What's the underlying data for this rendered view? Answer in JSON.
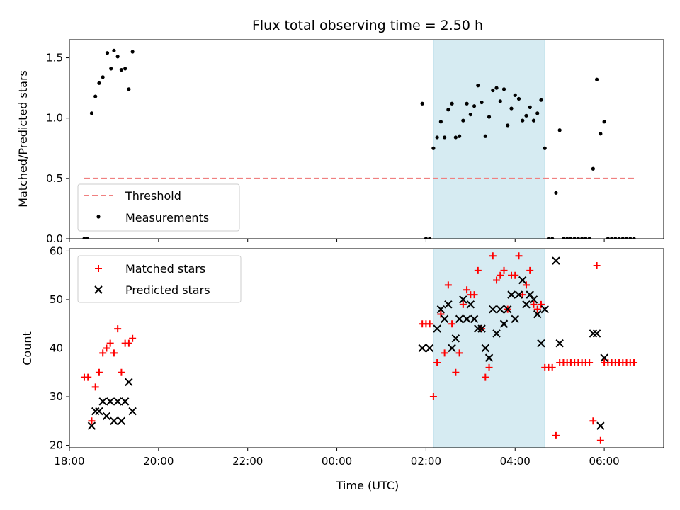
{
  "chart_data": [
    {
      "type": "scatter",
      "title": "Flux total observing time = 2.50 h",
      "xlabel": "",
      "ylabel": "Matched/Predicted stars",
      "ylim": [
        0,
        1.65
      ],
      "yticks": [
        "0.0",
        "0.5",
        "1.0",
        "1.5"
      ],
      "xlim": [
        "18:00",
        "07:20"
      ],
      "legend_position": "lower-left",
      "shaded_interval": {
        "start": "02:10",
        "end": "04:40",
        "color": "#add8e6"
      },
      "threshold": {
        "name": "Threshold",
        "value": 0.5,
        "x_start": "18:20",
        "x_end": "06:40",
        "color": "#f08080"
      },
      "series": [
        {
          "name": "Measurements",
          "color": "#000000",
          "marker": "dot",
          "points": [
            [
              "18:20",
              0.0
            ],
            [
              "18:24",
              0.0
            ],
            [
              "18:30",
              1.04
            ],
            [
              "18:35",
              1.18
            ],
            [
              "18:40",
              1.29
            ],
            [
              "18:45",
              1.34
            ],
            [
              "18:51",
              1.54
            ],
            [
              "18:56",
              1.41
            ],
            [
              "19:00",
              1.56
            ],
            [
              "19:05",
              1.51
            ],
            [
              "19:10",
              1.4
            ],
            [
              "19:15",
              1.41
            ],
            [
              "19:20",
              1.24
            ],
            [
              "19:25",
              1.55
            ],
            [
              "01:55",
              1.12
            ],
            [
              "02:00",
              0.0
            ],
            [
              "02:05",
              0.0
            ],
            [
              "02:10",
              0.75
            ],
            [
              "02:15",
              0.84
            ],
            [
              "02:20",
              0.97
            ],
            [
              "02:25",
              0.84
            ],
            [
              "02:30",
              1.07
            ],
            [
              "02:35",
              1.12
            ],
            [
              "02:40",
              0.84
            ],
            [
              "02:45",
              0.85
            ],
            [
              "02:50",
              0.98
            ],
            [
              "02:55",
              1.12
            ],
            [
              "03:00",
              1.03
            ],
            [
              "03:05",
              1.1
            ],
            [
              "03:10",
              1.27
            ],
            [
              "03:15",
              1.13
            ],
            [
              "03:20",
              0.85
            ],
            [
              "03:25",
              1.01
            ],
            [
              "03:30",
              1.23
            ],
            [
              "03:35",
              1.25
            ],
            [
              "03:40",
              1.14
            ],
            [
              "03:45",
              1.24
            ],
            [
              "03:50",
              0.94
            ],
            [
              "03:55",
              1.08
            ],
            [
              "04:00",
              1.19
            ],
            [
              "04:05",
              1.16
            ],
            [
              "04:10",
              0.98
            ],
            [
              "04:15",
              1.02
            ],
            [
              "04:20",
              1.09
            ],
            [
              "04:25",
              0.98
            ],
            [
              "04:30",
              1.04
            ],
            [
              "04:35",
              1.15
            ],
            [
              "04:40",
              0.75
            ],
            [
              "04:45",
              0.0
            ],
            [
              "04:50",
              0.0
            ],
            [
              "04:55",
              0.38
            ],
            [
              "05:00",
              0.9
            ],
            [
              "05:05",
              0.0
            ],
            [
              "05:10",
              0.0
            ],
            [
              "05:15",
              0.0
            ],
            [
              "05:20",
              0.0
            ],
            [
              "05:25",
              0.0
            ],
            [
              "05:30",
              0.0
            ],
            [
              "05:35",
              0.0
            ],
            [
              "05:40",
              0.0
            ],
            [
              "05:45",
              0.58
            ],
            [
              "05:50",
              1.32
            ],
            [
              "05:55",
              0.87
            ],
            [
              "06:00",
              0.97
            ],
            [
              "06:05",
              0.0
            ],
            [
              "06:10",
              0.0
            ],
            [
              "06:15",
              0.0
            ],
            [
              "06:20",
              0.0
            ],
            [
              "06:25",
              0.0
            ],
            [
              "06:30",
              0.0
            ],
            [
              "06:35",
              0.0
            ],
            [
              "06:40",
              0.0
            ]
          ]
        }
      ]
    },
    {
      "type": "scatter",
      "title": "",
      "xlabel": "Time (UTC)",
      "ylabel": "Count",
      "ylim": [
        19.5,
        60.5
      ],
      "yticks": [
        "20",
        "30",
        "40",
        "50",
        "60"
      ],
      "xlim": [
        "18:00",
        "07:20"
      ],
      "xticks": [
        "18:00",
        "20:00",
        "22:00",
        "00:00",
        "02:00",
        "04:00",
        "06:00"
      ],
      "legend_position": "upper-left",
      "shaded_interval": {
        "start": "02:10",
        "end": "04:40",
        "color": "#add8e6"
      },
      "series": [
        {
          "name": "Matched stars",
          "color": "#ff0000",
          "marker": "plus",
          "points": [
            [
              "18:20",
              34
            ],
            [
              "18:25",
              34
            ],
            [
              "18:30",
              25
            ],
            [
              "18:35",
              32
            ],
            [
              "18:40",
              35
            ],
            [
              "18:45",
              39
            ],
            [
              "18:50",
              40
            ],
            [
              "18:55",
              41
            ],
            [
              "19:00",
              39
            ],
            [
              "19:05",
              44
            ],
            [
              "19:10",
              35
            ],
            [
              "19:15",
              41
            ],
            [
              "19:20",
              41
            ],
            [
              "19:25",
              42
            ],
            [
              "01:55",
              45
            ],
            [
              "02:00",
              45
            ],
            [
              "02:05",
              45
            ],
            [
              "02:10",
              30
            ],
            [
              "02:15",
              37
            ],
            [
              "02:20",
              47
            ],
            [
              "02:25",
              39
            ],
            [
              "02:30",
              53
            ],
            [
              "02:35",
              45
            ],
            [
              "02:40",
              35
            ],
            [
              "02:45",
              39
            ],
            [
              "02:50",
              49
            ],
            [
              "02:55",
              52
            ],
            [
              "03:00",
              51
            ],
            [
              "03:05",
              51
            ],
            [
              "03:10",
              56
            ],
            [
              "03:15",
              44
            ],
            [
              "03:20",
              34
            ],
            [
              "03:25",
              36
            ],
            [
              "03:30",
              59
            ],
            [
              "03:35",
              54
            ],
            [
              "03:40",
              55
            ],
            [
              "03:45",
              56
            ],
            [
              "03:50",
              48
            ],
            [
              "03:55",
              55
            ],
            [
              "04:00",
              55
            ],
            [
              "04:05",
              59
            ],
            [
              "04:10",
              51
            ],
            [
              "04:15",
              53
            ],
            [
              "04:20",
              56
            ],
            [
              "04:25",
              49
            ],
            [
              "04:30",
              48
            ],
            [
              "04:35",
              49
            ],
            [
              "04:40",
              36
            ],
            [
              "04:45",
              36
            ],
            [
              "04:50",
              36
            ],
            [
              "04:55",
              22
            ],
            [
              "05:00",
              37
            ],
            [
              "05:05",
              37
            ],
            [
              "05:10",
              37
            ],
            [
              "05:15",
              37
            ],
            [
              "05:20",
              37
            ],
            [
              "05:25",
              37
            ],
            [
              "05:30",
              37
            ],
            [
              "05:35",
              37
            ],
            [
              "05:40",
              37
            ],
            [
              "05:45",
              25
            ],
            [
              "05:50",
              57
            ],
            [
              "05:55",
              21
            ],
            [
              "06:00",
              37
            ],
            [
              "06:05",
              37
            ],
            [
              "06:10",
              37
            ],
            [
              "06:15",
              37
            ],
            [
              "06:20",
              37
            ],
            [
              "06:25",
              37
            ],
            [
              "06:30",
              37
            ],
            [
              "06:35",
              37
            ],
            [
              "06:40",
              37
            ]
          ]
        },
        {
          "name": "Predicted stars",
          "color": "#000000",
          "marker": "x",
          "points": [
            [
              "18:30",
              24
            ],
            [
              "18:35",
              27
            ],
            [
              "18:40",
              27
            ],
            [
              "18:45",
              29
            ],
            [
              "18:50",
              26
            ],
            [
              "18:55",
              29
            ],
            [
              "19:00",
              25
            ],
            [
              "19:05",
              29
            ],
            [
              "19:10",
              25
            ],
            [
              "19:15",
              29
            ],
            [
              "19:20",
              33
            ],
            [
              "19:25",
              27
            ],
            [
              "01:55",
              40
            ],
            [
              "02:05",
              40
            ],
            [
              "02:15",
              44
            ],
            [
              "02:20",
              48
            ],
            [
              "02:25",
              46
            ],
            [
              "02:30",
              49
            ],
            [
              "02:35",
              40
            ],
            [
              "02:40",
              42
            ],
            [
              "02:45",
              46
            ],
            [
              "02:50",
              50
            ],
            [
              "02:55",
              46
            ],
            [
              "03:00",
              49
            ],
            [
              "03:05",
              46
            ],
            [
              "03:10",
              44
            ],
            [
              "03:15",
              44
            ],
            [
              "03:20",
              40
            ],
            [
              "03:25",
              38
            ],
            [
              "03:30",
              48
            ],
            [
              "03:35",
              43
            ],
            [
              "03:40",
              48
            ],
            [
              "03:45",
              45
            ],
            [
              "03:50",
              48
            ],
            [
              "03:55",
              51
            ],
            [
              "04:00",
              46
            ],
            [
              "04:05",
              51
            ],
            [
              "04:10",
              54
            ],
            [
              "04:15",
              49
            ],
            [
              "04:20",
              51
            ],
            [
              "04:25",
              50
            ],
            [
              "04:30",
              47
            ],
            [
              "04:35",
              41
            ],
            [
              "04:40",
              48
            ],
            [
              "04:55",
              58
            ],
            [
              "05:00",
              41
            ],
            [
              "05:45",
              43
            ],
            [
              "05:50",
              43
            ],
            [
              "05:55",
              24
            ],
            [
              "06:00",
              38
            ]
          ]
        }
      ]
    }
  ]
}
